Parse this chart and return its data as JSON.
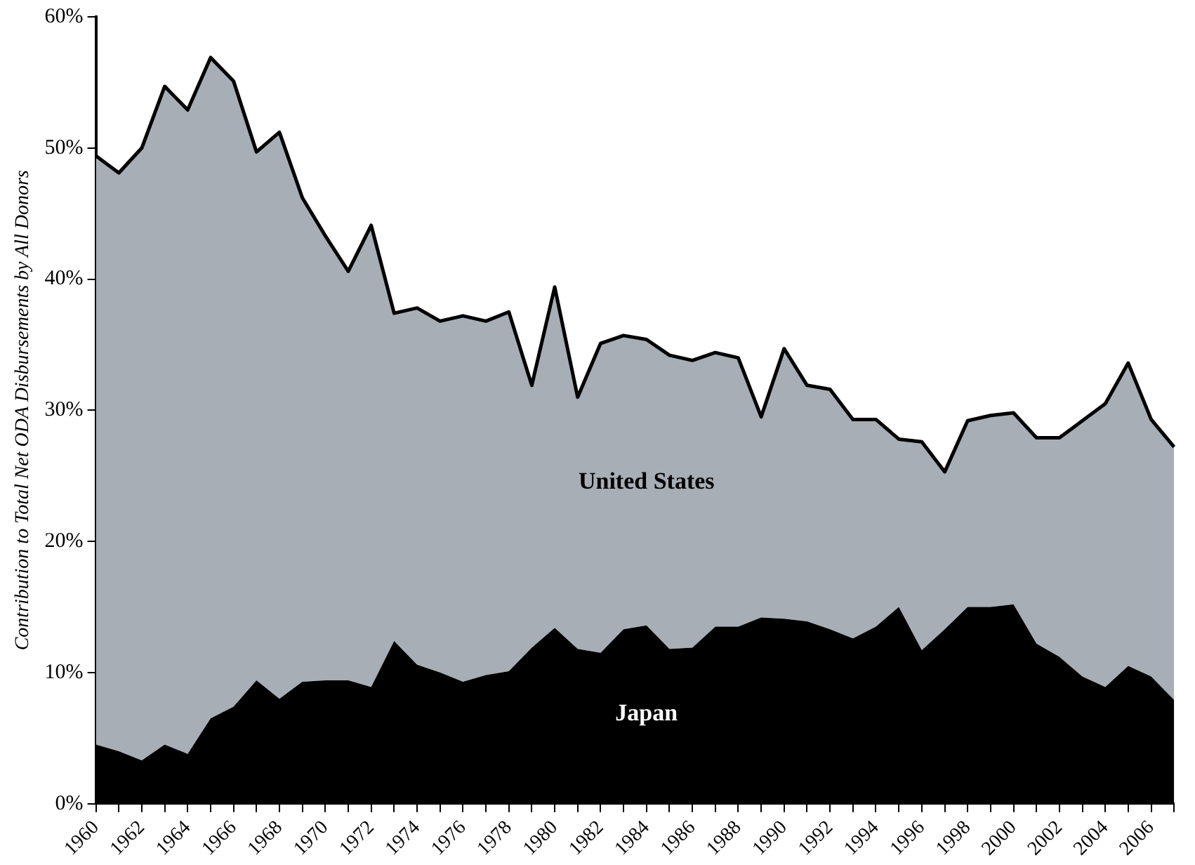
{
  "chart_data": {
    "type": "area",
    "stacked": true,
    "ylabel": "Contribution to Total Net ODA Disbursements by All Donors",
    "categories": [
      "1960",
      null,
      "1962",
      null,
      "1964",
      null,
      "1966",
      null,
      "1968",
      null,
      "1970",
      null,
      "1972",
      null,
      "1974",
      null,
      "1976",
      null,
      "1978",
      null,
      "1980",
      null,
      "1982",
      null,
      "1984",
      null,
      "1986",
      null,
      "1988",
      null,
      "1990",
      null,
      "1992",
      null,
      "1994",
      null,
      "1996",
      null,
      "1998",
      null,
      "2000",
      null,
      "2002",
      null,
      "2004",
      null,
      "2006",
      null
    ],
    "series": [
      {
        "name": "Japan",
        "color": "#000000",
        "values": [
          4.5,
          4.0,
          3.3,
          4.5,
          3.8,
          6.5,
          7.4,
          9.4,
          8.0,
          9.3,
          9.4,
          9.4,
          8.9,
          12.4,
          10.6,
          10.0,
          9.3,
          9.8,
          10.1,
          11.9,
          13.4,
          11.8,
          11.5,
          13.3,
          13.6,
          11.8,
          11.9,
          13.5,
          13.5,
          14.2,
          14.1,
          13.9,
          13.3,
          12.6,
          13.5,
          15.0,
          11.7,
          13.3,
          15.0,
          15.0,
          15.2,
          12.2,
          11.2,
          9.7,
          8.9,
          10.5,
          9.7,
          7.9
        ]
      },
      {
        "name": "United States",
        "color": "#a8aeb6",
        "values": [
          44.9,
          44.1,
          46.7,
          50.2,
          49.1,
          50.4,
          47.7,
          40.3,
          43.2,
          36.9,
          33.9,
          31.2,
          35.2,
          25.0,
          27.2,
          26.8,
          27.9,
          27.0,
          27.4,
          20.0,
          26.0,
          19.2,
          23.6,
          22.4,
          21.8,
          22.4,
          21.9,
          20.9,
          20.5,
          15.3,
          20.6,
          18.0,
          18.3,
          16.7,
          15.8,
          12.8,
          15.9,
          12.0,
          14.2,
          14.6,
          14.6,
          15.7,
          16.7,
          19.5,
          21.6,
          23.1,
          19.6,
          19.3
        ]
      }
    ],
    "ylim": [
      0,
      60
    ],
    "yticks": [
      {
        "value": 0,
        "label": "0%"
      },
      {
        "value": 10,
        "label": "10%"
      },
      {
        "value": 20,
        "label": "20%"
      },
      {
        "value": 30,
        "label": "30%"
      },
      {
        "value": 40,
        "label": "40%"
      },
      {
        "value": 50,
        "label": "50%"
      },
      {
        "value": 60,
        "label": "60%"
      }
    ],
    "grid": false,
    "legend": false
  }
}
